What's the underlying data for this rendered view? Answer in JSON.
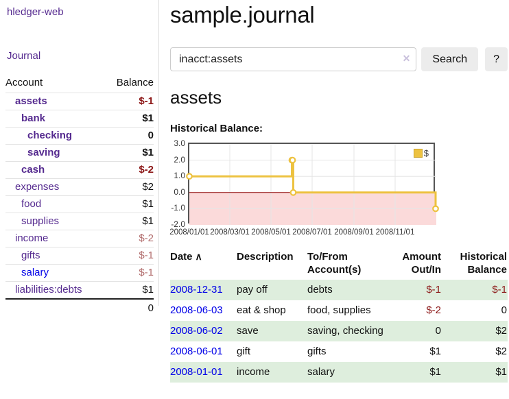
{
  "colors": {
    "purple": "#552a8f",
    "blue": "#0000e8",
    "neg-strong": "#8b1515",
    "neg-soft": "#b26d6d",
    "row-green": "#deeedd",
    "gold": "#edc240",
    "btn-bg": "#ececec",
    "grid": "#e5e5e5"
  },
  "sidebar": {
    "app_title": "hledger-web",
    "journal_link": "Journal",
    "accounts_header": {
      "account": "Account",
      "balance": "Balance"
    },
    "accounts": [
      {
        "name": "assets",
        "balance": "$-1",
        "indent": 0,
        "bold": true,
        "blue": false
      },
      {
        "name": "bank",
        "balance": "$1",
        "indent": 1,
        "bold": true,
        "blue": false
      },
      {
        "name": "checking",
        "balance": "0",
        "indent": 2,
        "bold": true,
        "blue": false
      },
      {
        "name": "saving",
        "balance": "$1",
        "indent": 2,
        "bold": true,
        "blue": false
      },
      {
        "name": "cash",
        "balance": "$-2",
        "indent": 1,
        "bold": true,
        "blue": false
      },
      {
        "name": "expenses",
        "balance": "$2",
        "indent": 0,
        "bold": false,
        "blue": false
      },
      {
        "name": "food",
        "balance": "$1",
        "indent": 1,
        "bold": false,
        "blue": false
      },
      {
        "name": "supplies",
        "balance": "$1",
        "indent": 1,
        "bold": false,
        "blue": false
      },
      {
        "name": "income",
        "balance": "$-2",
        "indent": 0,
        "bold": false,
        "blue": false
      },
      {
        "name": "gifts",
        "balance": "$-1",
        "indent": 1,
        "bold": false,
        "blue": false
      },
      {
        "name": "salary",
        "balance": "$-1",
        "indent": 1,
        "bold": false,
        "blue": true
      },
      {
        "name": "liabilities:debts",
        "balance": "$1",
        "indent": 0,
        "bold": false,
        "blue": false
      }
    ],
    "total": "0"
  },
  "main": {
    "title": "sample.journal",
    "account_heading": "assets",
    "chart_label": "Historical Balance:"
  },
  "search": {
    "value": "inacct:assets",
    "clear_icon": "✕",
    "button_label": "Search",
    "help_label": "?"
  },
  "chart_data": {
    "type": "line",
    "style": "step",
    "title": "Historical Balance:",
    "series": [
      {
        "name": "$",
        "points": [
          [
            "2008-01-01",
            1
          ],
          [
            "2008-06-01",
            2
          ],
          [
            "2008-06-02",
            2
          ],
          [
            "2008-06-03",
            0
          ],
          [
            "2008-12-31",
            -1
          ]
        ]
      }
    ],
    "x_range": [
      "2008-01-01",
      "2009-01-01"
    ],
    "ylim": [
      -2,
      3
    ],
    "yticks": [
      3,
      2,
      1,
      0,
      -1,
      -2
    ],
    "ytick_labels": [
      "3.0",
      "2.0",
      "1.0",
      "0.0",
      "-1.0",
      "-2.0"
    ],
    "xticks": [
      "2008-01-01",
      "2008-03-01",
      "2008-05-01",
      "2008-07-01",
      "2008-09-01",
      "2008-11-01"
    ],
    "xtick_labels": [
      "2008/01/01",
      "2008/03/01",
      "2008/05/01",
      "2008/07/01",
      "2008/09/01",
      "2008/11/01"
    ],
    "legend": {
      "label": "$",
      "position": "top-right"
    },
    "negative_region_fill": "#fbdada",
    "zero_line_color": "#8b0000",
    "grid": true
  },
  "transactions": {
    "sort_icon": "∧",
    "columns": [
      {
        "lines": [
          "Date"
        ],
        "align": "left",
        "sorted": true
      },
      {
        "lines": [
          "Description"
        ],
        "align": "left",
        "sorted": false
      },
      {
        "lines": [
          "To/From",
          "Account(s)"
        ],
        "align": "left",
        "sorted": false
      },
      {
        "lines": [
          "Amount",
          "Out/In"
        ],
        "align": "right",
        "sorted": false
      },
      {
        "lines": [
          "Historical",
          "Balance"
        ],
        "align": "right",
        "sorted": false
      }
    ],
    "rows": [
      {
        "date": "2008-12-31",
        "description": "pay off",
        "accounts": "debts",
        "amount": "$-1",
        "balance": "$-1"
      },
      {
        "date": "2008-06-03",
        "description": "eat & shop",
        "accounts": "food, supplies",
        "amount": "$-2",
        "balance": "0"
      },
      {
        "date": "2008-06-02",
        "description": "save",
        "accounts": "saving, checking",
        "amount": "0",
        "balance": "$2"
      },
      {
        "date": "2008-06-01",
        "description": "gift",
        "accounts": "gifts",
        "amount": "$1",
        "balance": "$2"
      },
      {
        "date": "2008-01-01",
        "description": "income",
        "accounts": "salary",
        "amount": "$1",
        "balance": "$1"
      }
    ]
  }
}
